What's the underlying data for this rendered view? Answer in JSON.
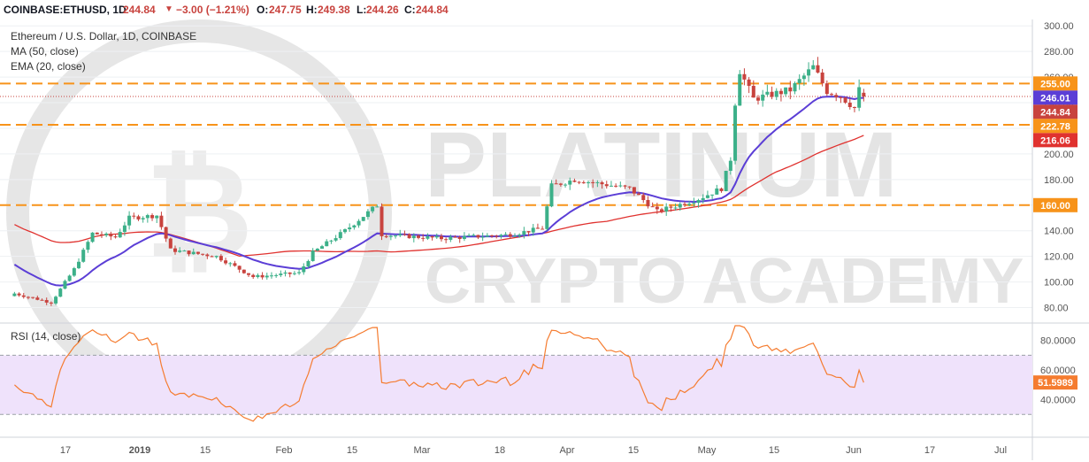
{
  "header": {
    "symbol": "COINBASE:ETHUSD, 1D",
    "last": "244.84",
    "change": "−3.00 (−1.21%)",
    "o_label": "O:",
    "o": "247.75",
    "h_label": "H:",
    "h": "249.38",
    "l_label": "L:",
    "l": "244.26",
    "c_label": "C:",
    "c": "244.84"
  },
  "legend": {
    "title": "Ethereum / U.S. Dollar, 1D, COINBASE",
    "ma": "MA (50, close)",
    "ema": "EMA (20, close)",
    "rsi": "RSI (14, close)"
  },
  "watermark": {
    "line1": "PLATINUM",
    "line2": "CRYPTO ACADEMY"
  },
  "colors": {
    "up": "#3cb089",
    "down": "#c8433e",
    "ema": "#5b3ed6",
    "ma": "#e0322f",
    "level": "#f7931a",
    "rsi": "#f57c30",
    "rsi_band": "#efe2fb",
    "grid": "#eef0f3"
  },
  "chart_data": [
    {
      "type": "candlestick",
      "title": "Ethereum / U.S. Dollar, 1D, COINBASE",
      "ylim": [
        70,
        305
      ],
      "y_ticks": [
        "300.00",
        "280.00",
        "260.00",
        "240.00",
        "220.00",
        "200.00",
        "180.00",
        "160.00",
        "140.00",
        "120.00",
        "100.00",
        "80.00"
      ],
      "x_ticks": [
        "17",
        "2019",
        "15",
        "Feb",
        "15",
        "Mar",
        "18",
        "Apr",
        "15",
        "May",
        "15",
        "Jun",
        "17",
        "Jul"
      ],
      "horizontal_levels": [
        255.0,
        222.78,
        160.0
      ],
      "price_labels": [
        {
          "text": "255.00",
          "color": "#f7931a",
          "value": 255.0
        },
        {
          "text": "246.01",
          "color": "#5b3ed6",
          "value": 246.01
        },
        {
          "text": "244.84",
          "color": "#c8433e",
          "value": 244.84
        },
        {
          "text": "222.78",
          "color": "#f7931a",
          "value": 222.78
        },
        {
          "text": "216.06",
          "color": "#e0322f",
          "value": 216.06
        },
        {
          "text": "160.00",
          "color": "#f7931a",
          "value": 160.0
        }
      ],
      "approx_close_path": [
        {
          "date": "2018-12-07",
          "close": 91
        },
        {
          "date": "2018-12-15",
          "close": 84
        },
        {
          "date": "2018-12-20",
          "close": 110
        },
        {
          "date": "2018-12-24",
          "close": 138
        },
        {
          "date": "2018-12-29",
          "close": 135
        },
        {
          "date": "2019-01-01",
          "close": 150
        },
        {
          "date": "2019-01-07",
          "close": 152
        },
        {
          "date": "2019-01-10",
          "close": 125
        },
        {
          "date": "2019-01-20",
          "close": 120
        },
        {
          "date": "2019-01-28",
          "close": 104
        },
        {
          "date": "2019-02-07",
          "close": 107
        },
        {
          "date": "2019-02-10",
          "close": 123
        },
        {
          "date": "2019-02-17",
          "close": 140
        },
        {
          "date": "2019-02-24",
          "close": 160
        },
        {
          "date": "2019-02-25",
          "close": 137
        },
        {
          "date": "2019-03-10",
          "close": 134
        },
        {
          "date": "2019-03-25",
          "close": 137
        },
        {
          "date": "2019-04-01",
          "close": 142
        },
        {
          "date": "2019-04-03",
          "close": 175
        },
        {
          "date": "2019-04-08",
          "close": 180
        },
        {
          "date": "2019-04-20",
          "close": 173
        },
        {
          "date": "2019-04-26",
          "close": 155
        },
        {
          "date": "2019-05-05",
          "close": 165
        },
        {
          "date": "2019-05-10",
          "close": 173
        },
        {
          "date": "2019-05-12",
          "close": 196
        },
        {
          "date": "2019-05-13",
          "close": 240
        },
        {
          "date": "2019-05-14",
          "close": 265
        },
        {
          "date": "2019-05-17",
          "close": 243
        },
        {
          "date": "2019-05-25",
          "close": 250
        },
        {
          "date": "2019-05-30",
          "close": 268
        },
        {
          "date": "2019-06-02",
          "close": 249
        },
        {
          "date": "2019-06-05",
          "close": 245
        },
        {
          "date": "2019-06-08",
          "close": 236
        },
        {
          "date": "2019-06-09",
          "close": 250
        },
        {
          "date": "2019-06-10",
          "close": 244.84
        }
      ],
      "series": [
        {
          "name": "EMA (20, close)",
          "last": 246.01
        },
        {
          "name": "MA (50, close)",
          "last": 216.06
        }
      ]
    },
    {
      "type": "line",
      "title": "RSI (14, close)",
      "ylim": [
        17,
        90
      ],
      "y_ticks": [
        "80.0000",
        "60.0000",
        "40.0000"
      ],
      "band": [
        30,
        70
      ],
      "last_value": 51.5989,
      "last_label": "51.5989"
    }
  ]
}
